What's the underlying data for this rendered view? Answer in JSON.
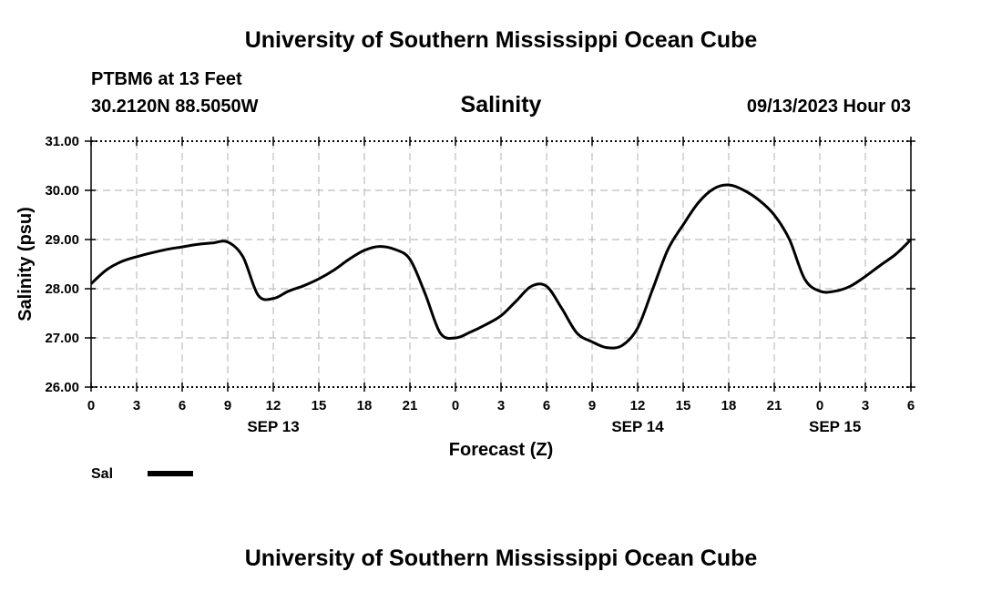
{
  "header": {
    "title": "University of Southern Mississippi Ocean Cube",
    "station": "PTBM6 at 13 Feet",
    "coords": "30.2120N  88.5050W",
    "timestamp": "09/13/2023 Hour 03"
  },
  "footer": {
    "title": "University of Southern Mississippi Ocean Cube"
  },
  "chart_data": {
    "type": "line",
    "title": "Salinity",
    "xlabel": "Forecast (Z)",
    "ylabel": "Salinity (psu)",
    "xlim": [
      0,
      54
    ],
    "ylim": [
      26.0,
      31.0
    ],
    "ytick_labels": [
      "26.00",
      "27.00",
      "28.00",
      "29.00",
      "30.00",
      "31.00"
    ],
    "xtick_labels": [
      "0",
      "3",
      "6",
      "9",
      "12",
      "15",
      "18",
      "21",
      "0",
      "3",
      "6",
      "9",
      "12",
      "15",
      "18",
      "21",
      "0",
      "3",
      "6"
    ],
    "day_labels": [
      {
        "label": "SEP 13",
        "x": 12
      },
      {
        "label": "SEP 14",
        "x": 36
      },
      {
        "label": "SEP 15",
        "x": 49
      }
    ],
    "grid": true,
    "legend_position": "bottom-left",
    "series": [
      {
        "name": "Sal",
        "color": "#000000",
        "x": [
          0,
          1,
          2,
          3,
          4,
          5,
          6,
          7,
          8,
          9,
          10,
          11,
          12,
          13,
          14,
          15,
          16,
          17,
          18,
          19,
          20,
          21,
          22,
          23,
          24,
          25,
          26,
          27,
          28,
          29,
          30,
          31,
          32,
          33,
          34,
          35,
          36,
          37,
          38,
          39,
          40,
          41,
          42,
          43,
          44,
          45,
          46,
          47,
          48,
          49,
          50,
          51,
          52,
          53,
          54
        ],
        "y": [
          28.1,
          28.38,
          28.55,
          28.65,
          28.73,
          28.8,
          28.85,
          28.9,
          28.93,
          28.95,
          28.65,
          27.87,
          27.8,
          27.95,
          28.06,
          28.2,
          28.38,
          28.6,
          28.78,
          28.86,
          28.8,
          28.6,
          27.9,
          27.1,
          27.0,
          27.12,
          27.27,
          27.45,
          27.75,
          28.05,
          28.05,
          27.6,
          27.1,
          26.92,
          26.8,
          26.85,
          27.2,
          28.0,
          28.8,
          29.3,
          29.75,
          30.03,
          30.11,
          30.0,
          29.8,
          29.5,
          29.0,
          28.2,
          27.95,
          27.95,
          28.05,
          28.25,
          28.48,
          28.7,
          29.0
        ]
      }
    ]
  }
}
